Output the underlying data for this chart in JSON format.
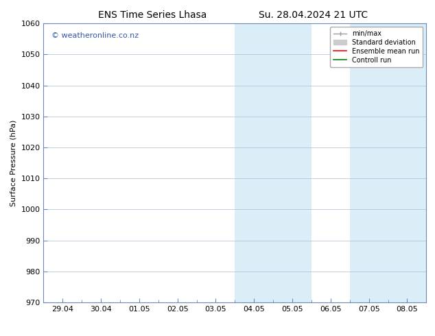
{
  "title_left": "ENS Time Series Lhasa",
  "title_right": "Su. 28.04.2024 21 UTC",
  "ylabel": "Surface Pressure (hPa)",
  "ylim": [
    970,
    1060
  ],
  "yticks": [
    970,
    980,
    990,
    1000,
    1010,
    1020,
    1030,
    1040,
    1050,
    1060
  ],
  "xtick_labels": [
    "29.04",
    "30.04",
    "01.05",
    "02.05",
    "03.05",
    "04.05",
    "05.05",
    "06.05",
    "07.05",
    "08.05"
  ],
  "xtick_positions": [
    0,
    1,
    2,
    3,
    4,
    5,
    6,
    7,
    8,
    9
  ],
  "x_min": -0.5,
  "x_max": 9.5,
  "shade_bands": [
    {
      "x_start": 4.5,
      "x_end": 5.5
    },
    {
      "x_start": 5.5,
      "x_end": 6.5
    },
    {
      "x_start": 7.5,
      "x_end": 8.5
    },
    {
      "x_start": 8.5,
      "x_end": 9.5
    }
  ],
  "shade_color": "#dbeef8",
  "watermark": "© weatheronline.co.nz",
  "watermark_color": "#3355aa",
  "legend_items": [
    {
      "label": "min/max",
      "color": "#aaaaaa"
    },
    {
      "label": "Standard deviation",
      "color": "#cccccc"
    },
    {
      "label": "Ensemble mean run",
      "color": "red"
    },
    {
      "label": "Controll run",
      "color": "green"
    }
  ],
  "bg_color": "#ffffff",
  "plot_bg_color": "#ffffff",
  "spine_color": "#6688bb",
  "tick_color": "#6688bb",
  "grid_color": "#aabbcc",
  "title_fontsize": 10,
  "tick_fontsize": 8,
  "ylabel_fontsize": 8,
  "watermark_fontsize": 8
}
